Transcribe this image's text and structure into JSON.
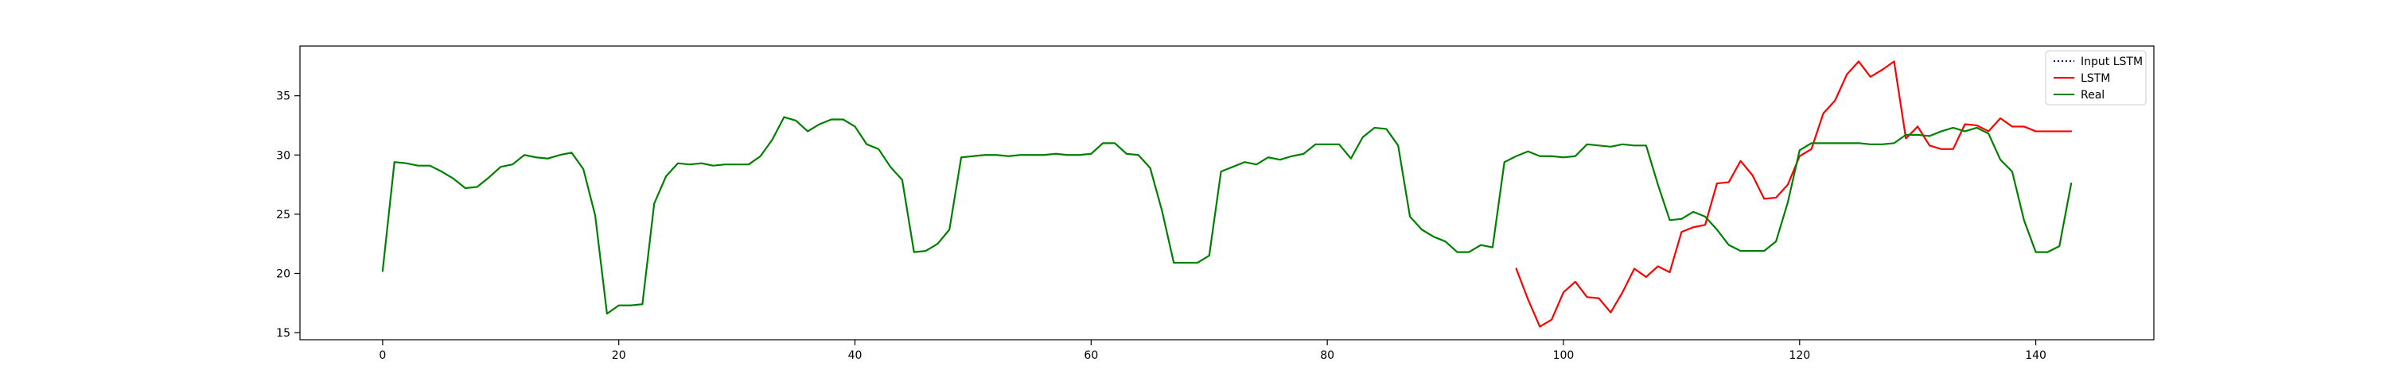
{
  "chart_data": {
    "type": "line",
    "xlim": [
      -7,
      150
    ],
    "ylim": [
      14.4,
      39.2
    ],
    "x_ticks": [
      0,
      20,
      40,
      60,
      80,
      100,
      120,
      140
    ],
    "x_tick_labels": [
      "0",
      "20",
      "40",
      "60",
      "80",
      "100",
      "120",
      "140"
    ],
    "y_ticks": [
      15,
      20,
      25,
      30,
      35
    ],
    "y_tick_labels": [
      "15",
      "20",
      "25",
      "30",
      "35"
    ],
    "legend_position": "top-right",
    "legend": [
      {
        "label": "Input LSTM",
        "color": "#00008b",
        "style": "dotted"
      },
      {
        "label": "LSTM",
        "color": "#ff0000",
        "style": "solid"
      },
      {
        "label": "Real",
        "color": "#008000",
        "style": "solid"
      }
    ],
    "series": [
      {
        "name": "LSTM",
        "color": "#ff0000",
        "x_start": 96,
        "values": [
          20.4,
          17.8,
          15.5,
          16.1,
          18.4,
          19.3,
          18.0,
          17.9,
          16.7,
          18.4,
          20.4,
          19.7,
          20.6,
          20.1,
          23.5,
          23.9,
          24.1,
          27.6,
          27.7,
          29.5,
          28.3,
          26.3,
          26.4,
          27.5,
          29.9,
          30.5,
          33.5,
          34.6,
          36.8,
          37.9,
          36.6,
          37.2,
          37.9,
          31.4,
          32.4,
          30.8,
          30.5,
          30.5,
          32.6,
          32.5,
          32.0,
          33.1,
          32.4,
          32.4,
          32.0,
          32.0,
          32.0,
          32.0
        ]
      },
      {
        "name": "Real",
        "color": "#008000",
        "x_start": 0,
        "values": [
          20.2,
          29.4,
          29.3,
          29.1,
          29.1,
          28.6,
          28.0,
          27.2,
          27.3,
          28.1,
          29.0,
          29.2,
          30.0,
          29.8,
          29.7,
          30.0,
          30.2,
          28.8,
          24.9,
          16.6,
          17.3,
          17.3,
          17.4,
          25.9,
          28.2,
          29.3,
          29.2,
          29.3,
          29.1,
          29.2,
          29.2,
          29.2,
          29.9,
          31.3,
          33.2,
          32.9,
          32.0,
          32.6,
          33.0,
          33.0,
          32.4,
          30.9,
          30.5,
          29.0,
          27.9,
          21.8,
          21.9,
          22.5,
          23.7,
          29.8,
          29.9,
          30.0,
          30.0,
          29.9,
          30.0,
          30.0,
          30.0,
          30.1,
          30.0,
          30.0,
          30.1,
          31.0,
          31.0,
          30.1,
          30.0,
          28.9,
          25.3,
          20.9,
          20.9,
          20.9,
          21.5,
          28.6,
          29.0,
          29.4,
          29.2,
          29.8,
          29.6,
          29.9,
          30.1,
          30.9,
          30.9,
          30.9,
          29.7,
          31.5,
          32.3,
          32.2,
          30.8,
          24.8,
          23.7,
          23.1,
          22.7,
          21.8,
          21.8,
          22.4,
          22.2,
          29.4,
          29.9,
          30.3,
          29.9,
          29.9,
          29.8,
          29.9,
          30.9,
          30.8,
          30.7,
          30.9,
          30.8,
          30.8,
          27.5,
          24.5,
          24.6,
          25.2,
          24.8,
          23.7,
          22.4,
          21.9,
          21.9,
          21.9,
          22.7,
          26.0,
          30.4,
          31.0,
          31.0,
          31.0,
          31.0,
          31.0,
          30.9,
          30.9,
          31.0,
          31.7,
          31.7,
          31.6,
          32.0,
          32.3,
          32.0,
          32.3,
          31.8,
          29.6,
          28.6,
          24.5,
          21.8,
          21.8,
          22.3,
          27.6
        ]
      }
    ]
  }
}
